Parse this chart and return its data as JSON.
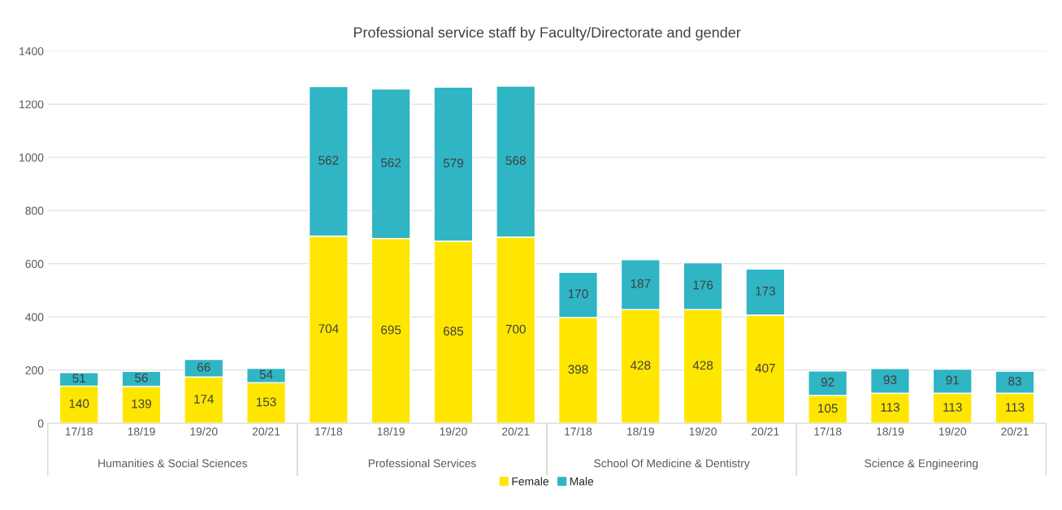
{
  "chart_data": {
    "type": "bar",
    "title": "Professional service staff by Faculty/Directorate and gender",
    "categories": [
      "17/18",
      "18/19",
      "19/20",
      "20/21",
      "17/18",
      "18/19",
      "19/20",
      "20/21",
      "17/18",
      "18/19",
      "19/20",
      "20/21",
      "17/18",
      "18/19",
      "19/20",
      "20/21"
    ],
    "series": [
      {
        "name": "Female",
        "color": "#ffe600",
        "values": [
          140,
          139,
          174,
          153,
          704,
          695,
          685,
          700,
          398,
          428,
          428,
          407,
          105,
          113,
          113,
          113
        ]
      },
      {
        "name": "Male",
        "color": "#2fb5c4",
        "values": [
          51,
          56,
          66,
          54,
          562,
          562,
          579,
          568,
          170,
          187,
          176,
          173,
          92,
          93,
          91,
          83
        ]
      }
    ],
    "stacked": true,
    "data_labels": true,
    "ylim": [
      0,
      1400
    ],
    "yticks": [
      0,
      200,
      400,
      600,
      800,
      1000,
      1200,
      1400
    ],
    "grid": "y",
    "legend": "bottom",
    "annotations": [
      "Humanities & Social Sciences",
      "Professional Services",
      "School Of Medicine & Dentistry",
      "Science & Engineering"
    ]
  }
}
